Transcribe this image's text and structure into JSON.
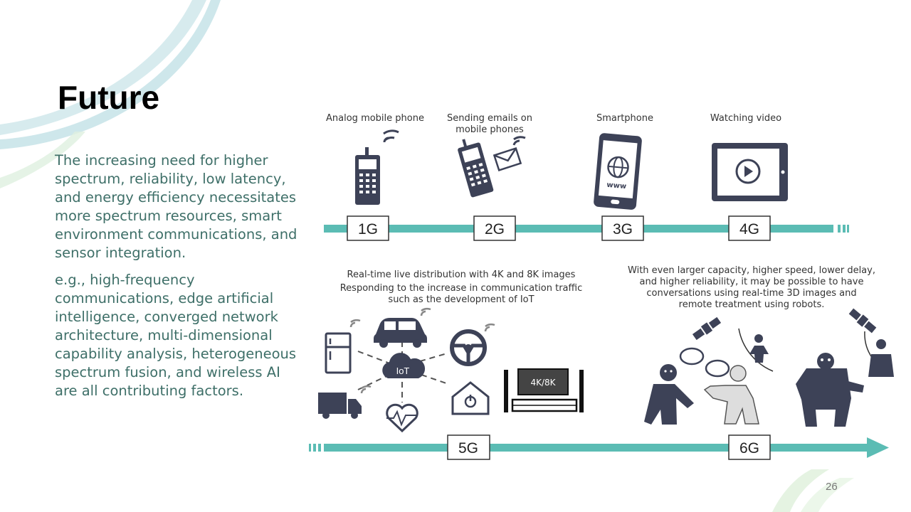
{
  "slide": {
    "title": "Future",
    "paragraphs": [
      "The increasing need for higher spectrum, reliability, low latency, and energy efficiency necessitates more spectrum resources, smart environment communications, and sensor integration.",
      "e.g., high-frequency communications, edge artificial intelligence, converged network architecture, multi-dimensional capability analysis, heterogeneous spectrum fusion, and wireless AI are all contributing factors."
    ],
    "page_number": "26"
  },
  "diagram": {
    "colors": {
      "timeline": "#5bbcb4",
      "icon": "#3d4257",
      "box_border": "#333333"
    },
    "top_row": [
      {
        "label": "Analog mobile phone",
        "generation": "1G",
        "icon": "analog-phone-icon"
      },
      {
        "label_lines": [
          "Sending emails on",
          "mobile phones"
        ],
        "generation": "2G",
        "icon": "feature-phone-email-icon"
      },
      {
        "label": "Smartphone",
        "generation": "3G",
        "icon": "smartphone-www-icon",
        "icon_text": "www"
      },
      {
        "label": "Watching video",
        "generation": "4G",
        "icon": "tablet-video-icon"
      }
    ],
    "g5": {
      "generation": "5G",
      "caption_lines": [
        "Real-time live distribution with 4K and 8K images",
        "Responding to the increase in communication traffic",
        "such as the development of IoT"
      ],
      "hub_label": "IoT",
      "tv_label": "4K/8K"
    },
    "g6": {
      "generation": "6G",
      "caption_lines": [
        "With even larger capacity, higher speed, lower delay,",
        "and higher reliability, it may be possible to have",
        "conversations using real-time 3D images and",
        "remote treatment using robots."
      ]
    }
  }
}
